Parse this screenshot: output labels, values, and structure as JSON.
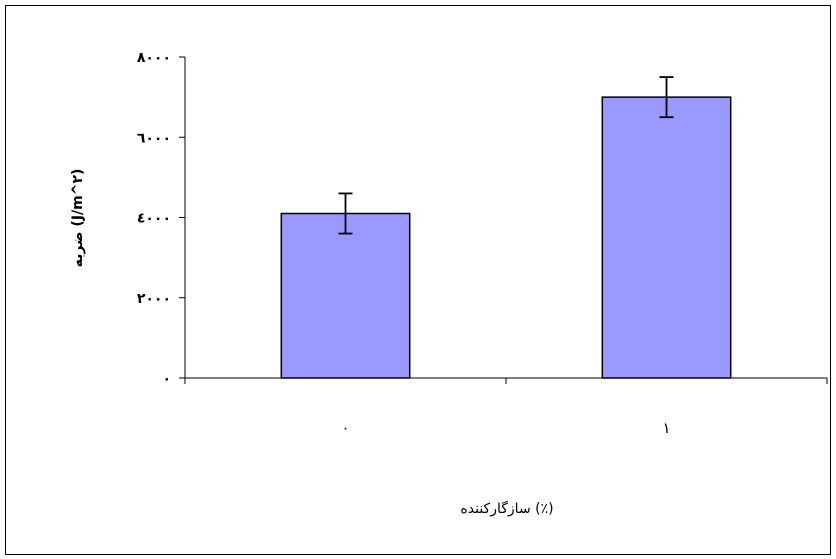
{
  "chart_data": {
    "type": "bar",
    "categories": [
      "۰",
      "۱"
    ],
    "values": [
      4100,
      7000
    ],
    "errors": [
      500,
      500
    ],
    "ylim": [
      0,
      8000
    ],
    "yticks": [
      0,
      2000,
      4000,
      6000,
      8000
    ],
    "ytick_labels": [
      "۰",
      "۲۰۰۰",
      "٤۰۰۰",
      "٦۰۰۰",
      "۸۰۰۰"
    ],
    "ylabel": "ضربه (J/m^۲)",
    "xlabel": "سازگارکننده (٪)",
    "grid": false,
    "bar_color": "#9999ff",
    "bar_edge_color": "#000000"
  }
}
